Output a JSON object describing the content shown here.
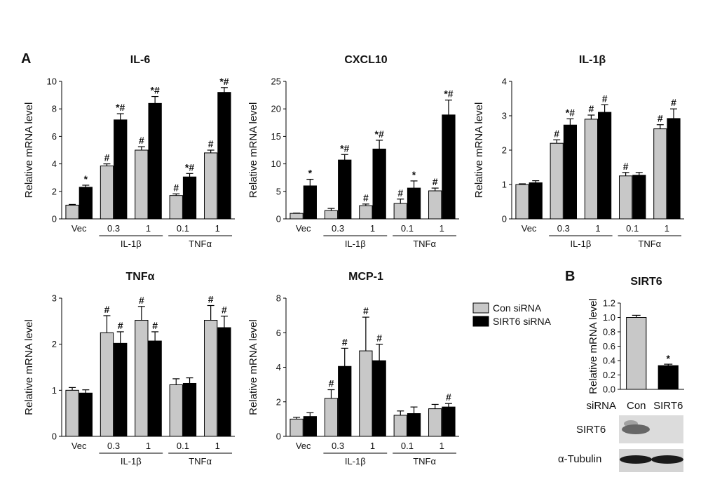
{
  "panel_a_label": "A",
  "panel_b_label": "B",
  "y_axis_label": "Relative mRNA level",
  "legend": [
    {
      "name": "Con siRNA",
      "color": "#c8c8c8"
    },
    {
      "name": "SIRT6 siRNA",
      "color": "#000000"
    }
  ],
  "chart_data": [
    {
      "type": "bar",
      "title": "IL-6",
      "ylim": [
        0,
        10
      ],
      "yticks": [
        0,
        2,
        4,
        6,
        8,
        10
      ],
      "categories": [
        "Vec",
        "0.3",
        "1",
        "0.1",
        "1"
      ],
      "groups": [
        {
          "label": "IL-1β",
          "cats": [
            1,
            2
          ]
        },
        {
          "label": "TNFα",
          "cats": [
            3,
            4
          ]
        }
      ],
      "series": [
        {
          "name": "Con siRNA",
          "values": [
            1.0,
            3.85,
            5.0,
            1.7,
            4.8
          ],
          "errors": [
            0.05,
            0.15,
            0.25,
            0.12,
            0.2
          ],
          "marks": [
            "",
            "#",
            "#",
            "#",
            "#"
          ]
        },
        {
          "name": "SIRT6 siRNA",
          "values": [
            2.3,
            7.2,
            8.4,
            3.05,
            9.2
          ],
          "errors": [
            0.15,
            0.45,
            0.5,
            0.25,
            0.35
          ],
          "marks": [
            "*",
            "*#",
            "*#",
            "*#",
            "*#"
          ]
        }
      ]
    },
    {
      "type": "bar",
      "title": "CXCL10",
      "ylim": [
        0,
        25
      ],
      "yticks": [
        0,
        5,
        10,
        15,
        20,
        25
      ],
      "categories": [
        "Vec",
        "0.3",
        "1",
        "0.1",
        "1"
      ],
      "groups": [
        {
          "label": "IL-1β",
          "cats": [
            1,
            2
          ]
        },
        {
          "label": "TNFα",
          "cats": [
            3,
            4
          ]
        }
      ],
      "series": [
        {
          "name": "Con siRNA",
          "values": [
            1.0,
            1.5,
            2.4,
            2.8,
            5.1
          ],
          "errors": [
            0.05,
            0.4,
            0.3,
            0.8,
            0.5
          ],
          "marks": [
            "",
            "",
            "#",
            "#",
            "#"
          ]
        },
        {
          "name": "SIRT6 siRNA",
          "values": [
            6.0,
            10.7,
            12.7,
            5.6,
            18.9
          ],
          "errors": [
            1.2,
            1.0,
            1.6,
            1.3,
            2.7
          ],
          "marks": [
            "*",
            "*#",
            "*#",
            "*",
            "*#"
          ]
        }
      ]
    },
    {
      "type": "bar",
      "title": "IL-1β",
      "ylim": [
        0,
        4
      ],
      "yticks": [
        0,
        1,
        2,
        3,
        4
      ],
      "categories": [
        "Vec",
        "0.3",
        "1",
        "0.1",
        "1"
      ],
      "groups": [
        {
          "label": "IL-1β",
          "cats": [
            1,
            2
          ]
        },
        {
          "label": "TNFα",
          "cats": [
            3,
            4
          ]
        }
      ],
      "series": [
        {
          "name": "Con siRNA",
          "values": [
            1.0,
            2.2,
            2.9,
            1.25,
            2.62
          ],
          "errors": [
            0.02,
            0.1,
            0.12,
            0.1,
            0.12
          ],
          "marks": [
            "",
            "#",
            "#",
            "#",
            "#"
          ]
        },
        {
          "name": "SIRT6 siRNA",
          "values": [
            1.05,
            2.73,
            3.1,
            1.27,
            2.92
          ],
          "errors": [
            0.06,
            0.18,
            0.22,
            0.08,
            0.28
          ],
          "marks": [
            "",
            "*#",
            "#",
            "",
            "#"
          ]
        }
      ]
    },
    {
      "type": "bar",
      "title": "TNFα",
      "ylim": [
        0,
        3
      ],
      "yticks": [
        0,
        1,
        2,
        3
      ],
      "categories": [
        "Vec",
        "0.3",
        "1",
        "0.1",
        "1"
      ],
      "groups": [
        {
          "label": "IL-1β",
          "cats": [
            1,
            2
          ]
        },
        {
          "label": "TNFα",
          "cats": [
            3,
            4
          ]
        }
      ],
      "series": [
        {
          "name": "Con siRNA",
          "values": [
            1.0,
            2.25,
            2.52,
            1.12,
            2.52
          ],
          "errors": [
            0.06,
            0.37,
            0.3,
            0.13,
            0.32
          ],
          "marks": [
            "",
            "#",
            "#",
            "",
            "#"
          ]
        },
        {
          "name": "SIRT6 siRNA",
          "values": [
            0.94,
            2.02,
            2.07,
            1.15,
            2.36
          ],
          "errors": [
            0.07,
            0.25,
            0.2,
            0.12,
            0.25
          ],
          "marks": [
            "",
            "#",
            "#",
            "",
            "#"
          ]
        }
      ]
    },
    {
      "type": "bar",
      "title": "MCP-1",
      "ylim": [
        0,
        8
      ],
      "yticks": [
        0,
        2,
        4,
        6,
        8
      ],
      "categories": [
        "Vec",
        "0.3",
        "1",
        "0.1",
        "1"
      ],
      "groups": [
        {
          "label": "IL-1β",
          "cats": [
            1,
            2
          ]
        },
        {
          "label": "TNFα",
          "cats": [
            3,
            4
          ]
        }
      ],
      "series": [
        {
          "name": "Con siRNA",
          "values": [
            1.0,
            2.2,
            4.95,
            1.22,
            1.6
          ],
          "errors": [
            0.1,
            0.5,
            1.95,
            0.25,
            0.25
          ],
          "marks": [
            "",
            "#",
            "#",
            "",
            ""
          ]
        },
        {
          "name": "SIRT6 siRNA",
          "values": [
            1.15,
            4.05,
            4.38,
            1.32,
            1.7
          ],
          "errors": [
            0.22,
            1.05,
            0.95,
            0.38,
            0.2
          ],
          "marks": [
            "",
            "#",
            "#",
            "",
            "#"
          ]
        }
      ]
    },
    {
      "type": "bar",
      "title": "SIRT6",
      "ylim": [
        0,
        1.2
      ],
      "yticks": [
        "0.0",
        "0.2",
        "0.4",
        "0.6",
        "0.8",
        "1.0",
        "1.2"
      ],
      "row_label": "siRNA",
      "categories": [
        "Con",
        "SIRT6"
      ],
      "values": [
        1.0,
        0.33
      ],
      "errors": [
        0.03,
        0.02
      ],
      "marks": [
        "",
        "*"
      ],
      "colors": [
        "#c8c8c8",
        "#000000"
      ]
    }
  ],
  "blot": {
    "rows": [
      "SIRT6",
      "α-Tubulin"
    ]
  }
}
